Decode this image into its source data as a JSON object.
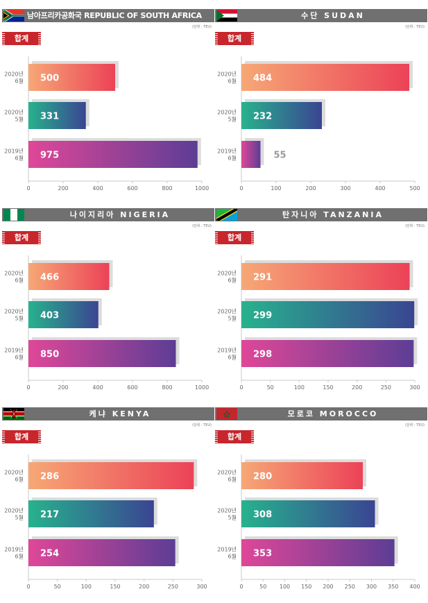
{
  "unit_label": "(단위 : TEU)",
  "badge_label": "합계",
  "gradients": {
    "row1": [
      "#f6a876",
      "#ec4257"
    ],
    "row2": [
      "#27b28d",
      "#3a4592"
    ],
    "row3": [
      "#df4798",
      "#5d3d95"
    ]
  },
  "chart_data": [
    {
      "type": "bar",
      "title": "남아프리카공화국 REPUBLIC OF SOUTH AFRICA",
      "categories": [
        [
          "2020년",
          "6월"
        ],
        [
          "2020년",
          "5월"
        ],
        [
          "2019년",
          "6월"
        ]
      ],
      "values": [
        500,
        331,
        975
      ],
      "labels": [
        "500",
        "331",
        "975"
      ],
      "xlim": [
        0,
        1000
      ],
      "ticks": [
        0,
        200,
        400,
        600,
        800,
        1000
      ],
      "tick_labels": [
        "0",
        "200",
        "400",
        "600",
        "800",
        "1000"
      ]
    },
    {
      "type": "bar",
      "title": "수단 SUDAN",
      "categories": [
        [
          "2020년",
          "6월"
        ],
        [
          "2020년",
          "5월"
        ],
        [
          "2019년",
          "6월"
        ]
      ],
      "values": [
        484,
        232,
        55
      ],
      "labels": [
        "484",
        "232",
        "55"
      ],
      "xlim": [
        0,
        500
      ],
      "ticks": [
        0,
        100,
        200,
        300,
        400,
        500
      ],
      "tick_labels": [
        "0",
        "100",
        "200",
        "300",
        "400",
        "500"
      ]
    },
    {
      "type": "bar",
      "title": "나이지리아 NIGERIA",
      "categories": [
        [
          "2020년",
          "6월"
        ],
        [
          "2020년",
          "5월"
        ],
        [
          "2019년",
          "6월"
        ]
      ],
      "values": [
        466,
        403,
        850
      ],
      "labels": [
        "466",
        "403",
        "850"
      ],
      "xlim": [
        0,
        1000
      ],
      "ticks": [
        0,
        200,
        400,
        600,
        800,
        1000
      ],
      "tick_labels": [
        "0",
        "200",
        "400",
        "600",
        "800",
        "1000"
      ]
    },
    {
      "type": "bar",
      "title": "탄자니아 TANZANIA",
      "categories": [
        [
          "2020년",
          "6월"
        ],
        [
          "2020년",
          "5월"
        ],
        [
          "2019년",
          "6월"
        ]
      ],
      "values": [
        291,
        299,
        298
      ],
      "labels": [
        "291",
        "299",
        "298"
      ],
      "xlim": [
        0,
        300
      ],
      "ticks": [
        0,
        50,
        100,
        150,
        200,
        250,
        300
      ],
      "tick_labels": [
        "0",
        "50",
        "100",
        "150",
        "200",
        "250",
        "300"
      ]
    },
    {
      "type": "bar",
      "title": "케냐 KENYA",
      "categories": [
        [
          "2020년",
          "6월"
        ],
        [
          "2020년",
          "5월"
        ],
        [
          "2019년",
          "6월"
        ]
      ],
      "values": [
        286,
        217,
        254
      ],
      "labels": [
        "286",
        "217",
        "254"
      ],
      "xlim": [
        0,
        300
      ],
      "ticks": [
        0,
        50,
        100,
        150,
        200,
        250,
        300
      ],
      "tick_labels": [
        "0",
        "50",
        "100",
        "150",
        "200",
        "250",
        "300"
      ]
    },
    {
      "type": "bar",
      "title": "모로코 MOROCCO",
      "categories": [
        [
          "2020년",
          "6월"
        ],
        [
          "2020년",
          "5월"
        ],
        [
          "2019년",
          "6월"
        ]
      ],
      "values": [
        280,
        308,
        353
      ],
      "labels": [
        "280",
        "308",
        "353"
      ],
      "xlim": [
        0,
        400
      ],
      "ticks": [
        0,
        50,
        100,
        150,
        200,
        250,
        300,
        350,
        400
      ],
      "tick_labels": [
        "0",
        "50",
        "100",
        "150",
        "200",
        "250",
        "300",
        "350",
        "400"
      ]
    }
  ]
}
